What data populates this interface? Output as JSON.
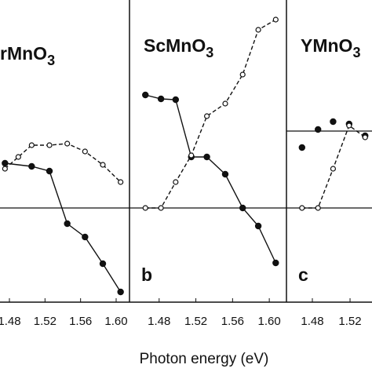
{
  "chart_data": [
    {
      "type": "scatter-line",
      "title": "rMnO3",
      "xlim": [
        1.4694,
        1.615
      ],
      "ylim": [
        -1.2,
        2.65
      ],
      "xticks": [
        1.48,
        1.52,
        1.56,
        {
          "value": 1.6,
          "label": "1.60"
        }
      ],
      "hlines": [
        0
      ],
      "series": [
        {
          "x": [
            1.475,
            1.505,
            1.525,
            1.545,
            1.565,
            1.585,
            1.605
          ],
          "values": [
            0.57,
            0.53,
            0.47,
            -0.2,
            -0.37,
            -0.71,
            -1.07
          ],
          "marker": "filled",
          "line": "solid",
          "color": "#111111"
        },
        {
          "x": [
            1.475,
            1.49,
            1.505,
            1.525,
            1.545,
            1.565,
            1.585,
            1.605
          ],
          "values": [
            0.5,
            0.65,
            0.8,
            0.8,
            0.82,
            0.72,
            0.55,
            0.33
          ],
          "marker": "open",
          "line": "dashed",
          "color": "#111111"
        }
      ]
    },
    {
      "type": "scatter-line",
      "title": "ScMnO3",
      "letter": "b",
      "xlim": [
        1.4477,
        1.6187
      ],
      "ylim": [
        -1.2,
        2.65
      ],
      "xticks": [
        1.48,
        1.52,
        1.56,
        {
          "value": 1.6,
          "label": "1.60"
        }
      ],
      "hlines": [
        0
      ],
      "series": [
        {
          "x": [
            1.465,
            1.482,
            1.498,
            1.515,
            1.532,
            1.552,
            1.571,
            1.588,
            1.607
          ],
          "values": [
            1.44,
            1.39,
            1.38,
            0.65,
            0.65,
            0.43,
            0.0,
            -0.23,
            -0.7
          ],
          "marker": "filled",
          "line": "solid",
          "color": "#111111"
        },
        {
          "x": [
            1.465,
            1.482,
            1.498,
            1.515,
            1.532,
            1.552,
            1.571,
            1.588,
            1.607
          ],
          "values": [
            0,
            0,
            0.33,
            0.67,
            1.17,
            1.33,
            1.7,
            2.27,
            2.4
          ],
          "marker": "open",
          "line": "dashed",
          "color": "#111111"
        }
      ]
    },
    {
      "type": "scatter-line",
      "title": "YMnO3",
      "letter": "c",
      "xlim": [
        1.4525,
        1.5433
      ],
      "ylim": [
        -1.2,
        2.65
      ],
      "xticks": [
        1.48,
        1.52
      ],
      "hlines": [
        0,
        0.98
      ],
      "series": [
        {
          "x": [
            1.469,
            1.486,
            1.502,
            1.519,
            1.536
          ],
          "values": [
            0.77,
            1.0,
            1.1,
            1.07,
            0.92
          ],
          "marker": "filled",
          "line": "none",
          "color": "#111111"
        },
        {
          "x": [
            1.469,
            1.486,
            1.502,
            1.519,
            1.536
          ],
          "values": [
            0,
            0,
            0.5,
            1.05,
            0.9
          ],
          "marker": "open",
          "line": "dashed",
          "color": "#111111"
        }
      ]
    }
  ],
  "xlabel": "Photon energy  (eV)"
}
